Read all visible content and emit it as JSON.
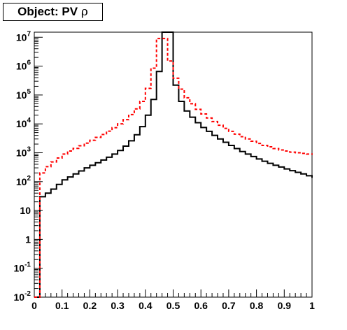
{
  "title": {
    "prefix": "Object: PV",
    "symbol": "ρ"
  },
  "chart_data": {
    "type": "histogram",
    "title": "Object: PV ρ",
    "xlabel": "",
    "ylabel": "",
    "xlim": [
      0,
      1
    ],
    "ylim": [
      0.01,
      15000000
    ],
    "ylog": true,
    "grid": false,
    "x_ticks": [
      "0",
      "0.1",
      "0.2",
      "0.3",
      "0.4",
      "0.5",
      "0.6",
      "0.7",
      "0.8",
      "0.9",
      "1"
    ],
    "y_ticks": [
      {
        "value": 0.01,
        "base": "10",
        "exp": "-2"
      },
      {
        "value": 0.1,
        "base": "10",
        "exp": "-1"
      },
      {
        "value": 1,
        "base": "1",
        "exp": ""
      },
      {
        "value": 10,
        "base": "10",
        "exp": ""
      },
      {
        "value": 100,
        "base": "10",
        "exp": "2"
      },
      {
        "value": 1000,
        "base": "10",
        "exp": "3"
      },
      {
        "value": 10000,
        "base": "10",
        "exp": "4"
      },
      {
        "value": 100000,
        "base": "10",
        "exp": "5"
      },
      {
        "value": 1000000,
        "base": "10",
        "exp": "6"
      },
      {
        "value": 10000000,
        "base": "10",
        "exp": "7"
      }
    ],
    "bin_edges": [
      0,
      0.02,
      0.04,
      0.06,
      0.08,
      0.1,
      0.12,
      0.14,
      0.16,
      0.18,
      0.2,
      0.22,
      0.24,
      0.26,
      0.28,
      0.3,
      0.32,
      0.34,
      0.36,
      0.38,
      0.4,
      0.42,
      0.44,
      0.46,
      0.48,
      0.5,
      0.52,
      0.54,
      0.56,
      0.58,
      0.6,
      0.62,
      0.64,
      0.66,
      0.68,
      0.7,
      0.72,
      0.74,
      0.76,
      0.78,
      0.8,
      0.82,
      0.84,
      0.86,
      0.88,
      0.9,
      0.92,
      0.94,
      0.96,
      0.98,
      1.0
    ],
    "series": [
      {
        "color": "#000000",
        "style": "solid",
        "values": [
          0,
          30,
          40,
          55,
          80,
          115,
          145,
          185,
          235,
          300,
          370,
          450,
          560,
          700,
          900,
          1200,
          1700,
          2600,
          4200,
          8000,
          20000,
          70000,
          650000,
          15000000,
          15000000,
          220000,
          60000,
          28000,
          17000,
          11000,
          7500,
          5500,
          4000,
          3000,
          2300,
          1800,
          1400,
          1100,
          900,
          740,
          610,
          510,
          430,
          370,
          320,
          275,
          240,
          210,
          185,
          160,
          135
        ]
      },
      {
        "color": "#ff0000",
        "style": "dashed",
        "values": [
          0,
          200,
          330,
          480,
          660,
          900,
          1150,
          1420,
          1750,
          2150,
          2700,
          3400,
          4300,
          5600,
          7400,
          10000,
          14000,
          21000,
          33000,
          60000,
          170000,
          850000,
          9000000,
          9000000,
          1500000,
          380000,
          160000,
          80000,
          50000,
          32000,
          22000,
          16000,
          12000,
          9000,
          7000,
          5500,
          4400,
          3600,
          3000,
          2500,
          2100,
          1800,
          1600,
          1400,
          1250,
          1150,
          1050,
          1000,
          950,
          900,
          850
        ]
      }
    ]
  }
}
